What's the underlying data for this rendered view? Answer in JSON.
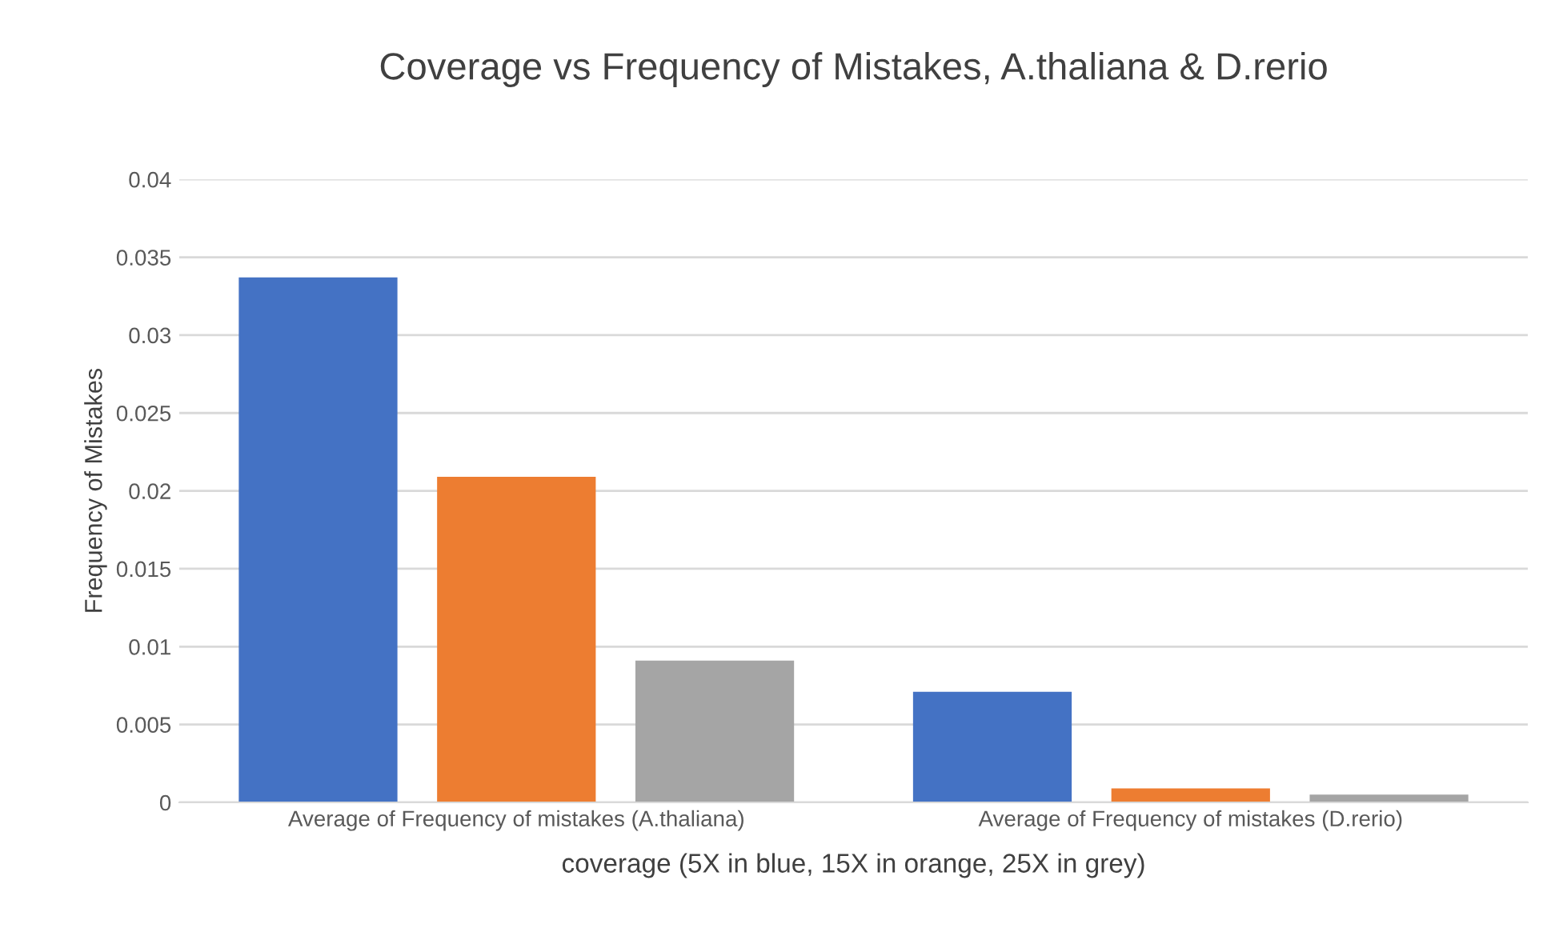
{
  "chart_data": {
    "type": "bar",
    "title": "Coverage vs Frequency of Mistakes, A.thaliana & D.rerio",
    "xlabel": "coverage (5X in blue, 15X in orange, 25X in grey)",
    "ylabel": "Frequency of Mistakes",
    "categories": [
      "Average of Frequency of mistakes (A.thaliana)",
      "Average of Frequency of mistakes (D.rerio)"
    ],
    "series": [
      {
        "color": "#4472c4",
        "values": [
          0.0337,
          0.0071
        ]
      },
      {
        "color": "#ed7d31",
        "values": [
          0.0209,
          0.0009
        ]
      },
      {
        "color": "#a5a5a5",
        "values": [
          0.0091,
          0.0005
        ]
      }
    ],
    "ylim": [
      0,
      0.04
    ],
    "yticks": [
      0,
      0.005,
      0.01,
      0.015,
      0.02,
      0.025,
      0.03,
      0.035,
      0.04
    ],
    "grid": "y",
    "legend": false
  }
}
